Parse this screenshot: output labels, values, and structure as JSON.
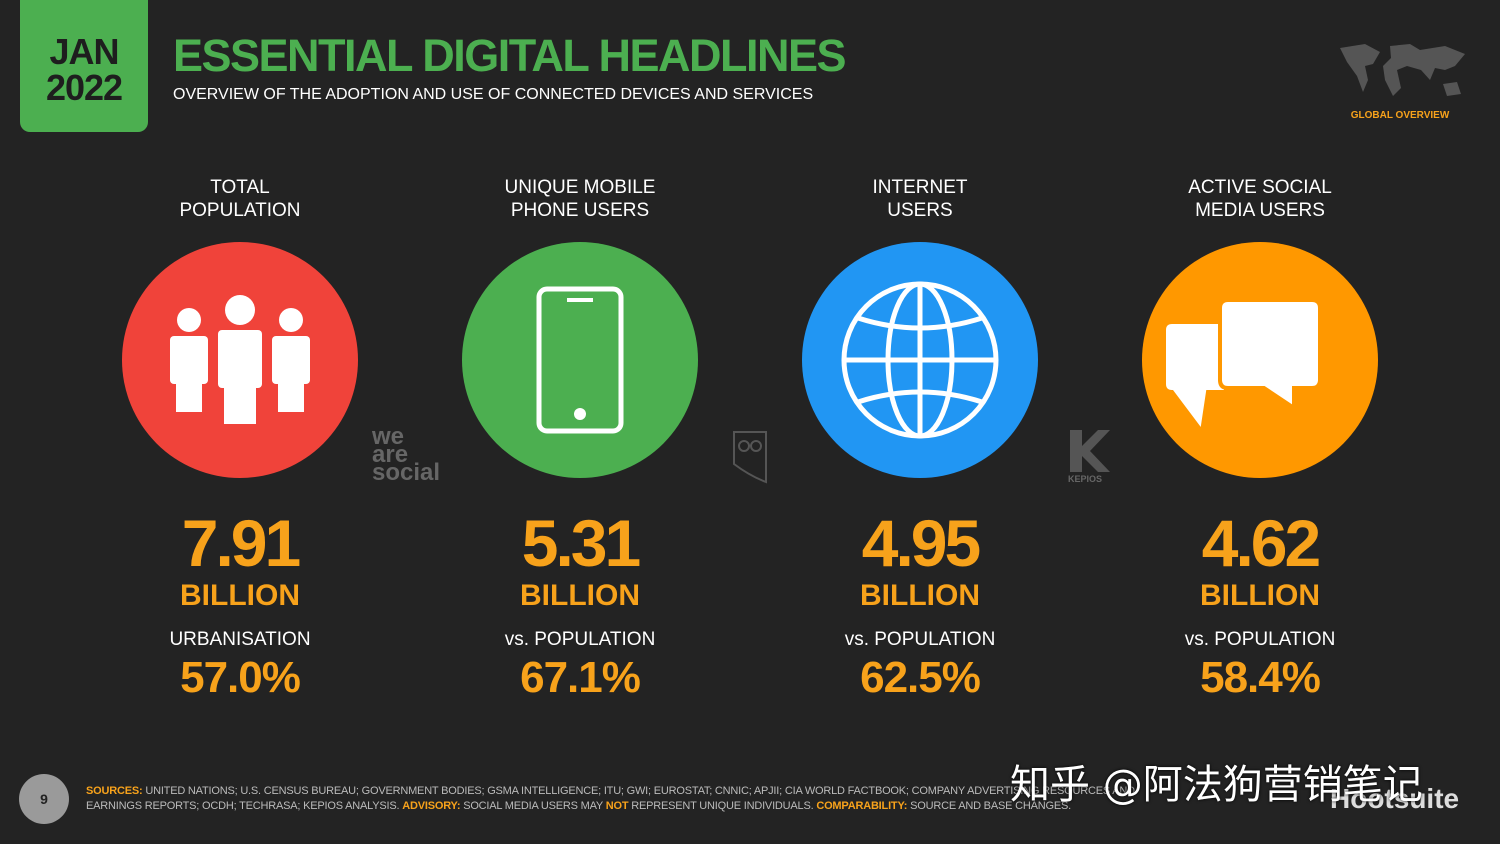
{
  "badge": {
    "month": "JAN",
    "year": "2022"
  },
  "header": {
    "title": "ESSENTIAL DIGITAL HEADLINES",
    "subtitle": "OVERVIEW OF THE ADOPTION AND USE OF CONNECTED DEVICES AND SERVICES",
    "section": "GLOBAL OVERVIEW"
  },
  "stats": [
    {
      "label": [
        "TOTAL",
        "POPULATION"
      ],
      "value": "7.91",
      "unit": "BILLION",
      "sublabel": "URBANISATION",
      "percent": "57.0%"
    },
    {
      "label": [
        "UNIQUE MOBILE",
        "PHONE USERS"
      ],
      "value": "5.31",
      "unit": "BILLION",
      "sublabel": "vs. POPULATION",
      "percent": "67.1%"
    },
    {
      "label": [
        "INTERNET",
        "USERS"
      ],
      "value": "4.95",
      "unit": "BILLION",
      "sublabel": "vs. POPULATION",
      "percent": "62.5%"
    },
    {
      "label": [
        "ACTIVE SOCIAL",
        "MEDIA USERS"
      ],
      "value": "4.62",
      "unit": "BILLION",
      "sublabel": "vs. POPULATION",
      "percent": "58.4%"
    }
  ],
  "logos": {
    "we_are_social": [
      "we",
      "are",
      "social"
    ],
    "kepios": "KEPIOS",
    "hootsuite": "Hootsuite"
  },
  "footer": {
    "page": "9",
    "sources_label": "SOURCES:",
    "sources_text": "UNITED NATIONS; U.S. CENSUS BUREAU; GOVERNMENT BODIES; GSMA INTELLIGENCE; ITU; GWI; EUROSTAT; CNNIC; APJII; CIA WORLD FACTBOOK; COMPANY ADVERTISING RESOURCES AND EARNINGS REPORTS; OCDH; TECHRASA; KEPIOS ANALYSIS.",
    "advisory_label": "ADVISORY:",
    "advisory_text_1": "SOCIAL MEDIA USERS MAY",
    "advisory_not": "NOT",
    "advisory_text_2": "REPRESENT UNIQUE INDIVIDUALS.",
    "comparability_label": "COMPARABILITY:",
    "comparability_text": "SOURCE AND BASE CHANGES."
  },
  "watermark": "知乎 @阿法狗营销笔记"
}
